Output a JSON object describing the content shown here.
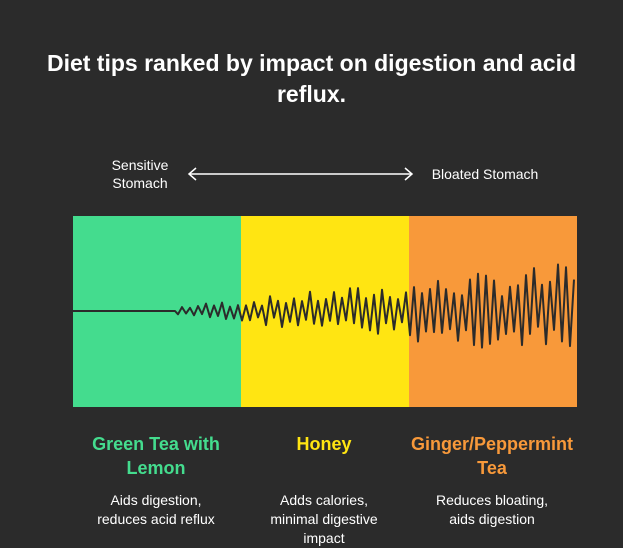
{
  "title": "Diet tips ranked by impact on digestion and acid reflux.",
  "scale": {
    "left": "Sensitive Stomach",
    "right": "Bloated Stomach"
  },
  "items": [
    {
      "label": "Green Tea with Lemon",
      "description": "Aids digestion, reduces acid reflux"
    },
    {
      "label": "Honey",
      "description": "Adds calories, minimal digestive impact"
    },
    {
      "label": "Ginger/Peppermint Tea",
      "description": "Reduces bloating, aids digestion"
    }
  ]
}
